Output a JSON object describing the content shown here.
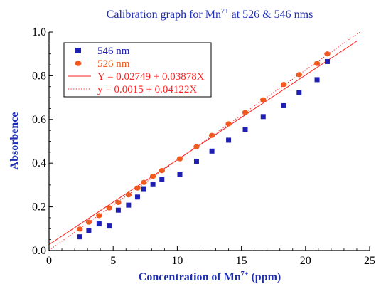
{
  "chart_data": {
    "type": "scatter",
    "title": {
      "main": "Calibration graph for Mn",
      "sup": "7+",
      "rest": " at 526 & 546 nms"
    },
    "xlabel": {
      "main": "Concentration of Mn",
      "sup": "7+",
      "rest": " (ppm)"
    },
    "ylabel": "Absorbence",
    "xlim": [
      0,
      25
    ],
    "ylim": [
      0,
      1.0
    ],
    "xticks": [
      0,
      5,
      10,
      15,
      20,
      25
    ],
    "xtick_labels": [
      "0",
      "5",
      "10",
      "15",
      "20",
      "25"
    ],
    "yticks": [
      0,
      0.2,
      0.4,
      0.6,
      0.8,
      1.0
    ],
    "ytick_labels": [
      "0.0",
      "0.2",
      "0.4",
      "0.6",
      "0.8",
      "1.0"
    ],
    "grid": false,
    "legend_position": "top-left",
    "series": [
      {
        "name": "546 nm",
        "marker": "square",
        "color": "#1f1fb4",
        "x": [
          2.4,
          3.1,
          3.9,
          4.7,
          5.4,
          6.2,
          6.9,
          7.4,
          8.1,
          8.8,
          10.2,
          11.5,
          12.7,
          14.0,
          15.3,
          16.7,
          18.3,
          19.5,
          20.9,
          21.7
        ],
        "y": [
          0.063,
          0.092,
          0.122,
          0.112,
          0.185,
          0.208,
          0.245,
          0.28,
          0.302,
          0.326,
          0.35,
          0.408,
          0.455,
          0.505,
          0.555,
          0.613,
          0.663,
          0.723,
          0.782,
          0.865
        ]
      },
      {
        "name": "526 nm",
        "marker": "circle",
        "color": "#f05a1e",
        "x": [
          2.4,
          3.1,
          3.9,
          4.7,
          5.4,
          6.2,
          6.9,
          7.4,
          8.1,
          8.8,
          10.2,
          11.5,
          12.7,
          14.0,
          15.3,
          16.7,
          18.3,
          19.5,
          20.9,
          21.7
        ],
        "y": [
          0.098,
          0.13,
          0.16,
          0.195,
          0.22,
          0.255,
          0.286,
          0.312,
          0.34,
          0.366,
          0.42,
          0.475,
          0.527,
          0.58,
          0.632,
          0.69,
          0.76,
          0.805,
          0.856,
          0.9
        ]
      }
    ],
    "fits": [
      {
        "name": "Y = 0.02749 + 0.03878X",
        "intercept": 0.02749,
        "slope": 0.03878,
        "style": "solid",
        "color": "#ff2020",
        "x_range": [
          0,
          24
        ]
      },
      {
        "name": "y = 0.0015 + 0.04122X",
        "intercept": 0.0015,
        "slope": 0.04122,
        "style": "dotted",
        "color": "#ff2020",
        "x_range": [
          0,
          24.3
        ]
      }
    ],
    "colors": {
      "title": "#1e2db4",
      "axis_label": "#1e2db4",
      "legend_text_546": "#1f1fb4",
      "legend_text_526": "#f05a1e",
      "legend_text_fit": "#ff2020",
      "axis": "#000000"
    }
  }
}
